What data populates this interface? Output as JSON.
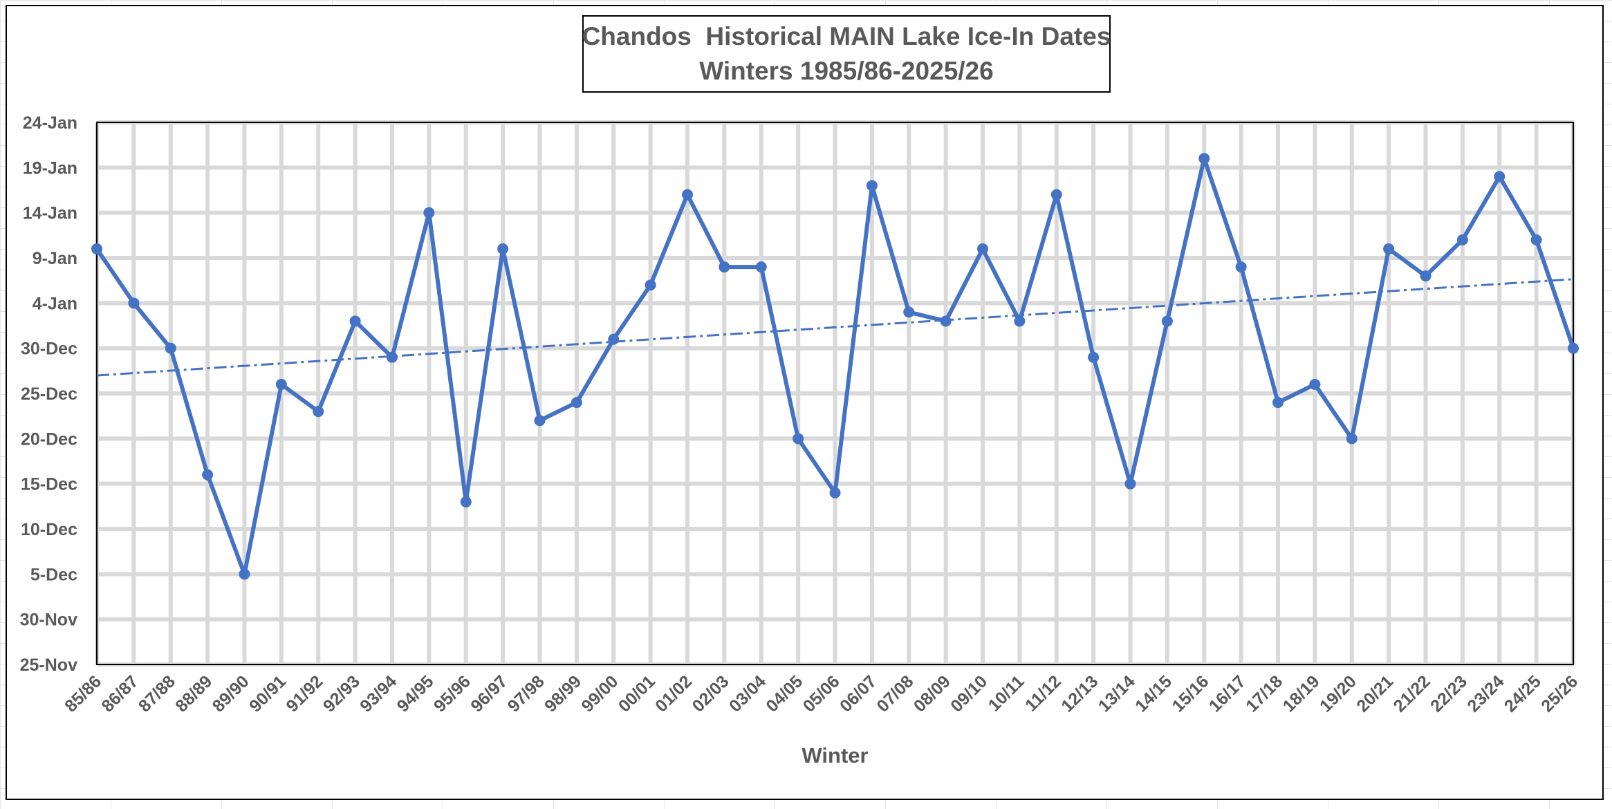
{
  "chart_data": {
    "type": "line",
    "title": "Chandos  Historical MAIN Lake Ice-In Dates",
    "subtitle": "Winters 1985/86-2025/26",
    "xlabel": "Winter",
    "ylabel": "",
    "y_ticks": [
      "25-Nov",
      "30-Nov",
      "5-Dec",
      "10-Dec",
      "15-Dec",
      "20-Dec",
      "25-Dec",
      "30-Dec",
      "4-Jan",
      "9-Jan",
      "14-Jan",
      "19-Jan",
      "24-Jan"
    ],
    "ylim": [
      "25-Nov",
      "24-Jan"
    ],
    "categories": [
      "85/86",
      "86/87",
      "87/88",
      "88/89",
      "89/90",
      "90/91",
      "91/92",
      "92/93",
      "93/94",
      "94/95",
      "95/96",
      "96/97",
      "97/98",
      "98/99",
      "99/00",
      "00/01",
      "01/02",
      "02/03",
      "03/04",
      "04/05",
      "05/06",
      "06/07",
      "07/08",
      "08/09",
      "09/10",
      "10/11",
      "11/12",
      "12/13",
      "13/14",
      "14/15",
      "15/16",
      "16/17",
      "17/18",
      "18/19",
      "19/20",
      "20/21",
      "21/22",
      "22/23",
      "23/24",
      "24/25",
      "25/26"
    ],
    "series": [
      {
        "values": [
          "10-Jan",
          "4-Jan",
          "30-Dec",
          "16-Dec",
          "5-Dec",
          "26-Dec",
          "23-Dec",
          "2-Jan",
          "29-Dec",
          "14-Jan",
          "13-Dec",
          "10-Jan",
          "22-Dec",
          "24-Dec",
          "31-Dec",
          "6-Jan",
          "16-Jan",
          "8-Jan",
          "8-Jan",
          "20-Dec",
          "14-Dec",
          "17-Jan",
          "3-Jan",
          "2-Jan",
          "10-Jan",
          "2-Jan",
          "16-Jan",
          "29-Dec",
          "15-Dec",
          "2-Jan",
          "20-Jan",
          "8-Jan",
          "24-Dec",
          "26-Dec",
          "20-Dec",
          "10-Jan",
          "7-Jan",
          "11-Jan",
          "18-Jan",
          "11-Jan",
          "30-Dec"
        ],
        "color": "#4472c4"
      }
    ],
    "trendline": {
      "type": "linear",
      "style": "dash-dot",
      "color": "#4472c4"
    },
    "grid": true,
    "legend": "none"
  }
}
